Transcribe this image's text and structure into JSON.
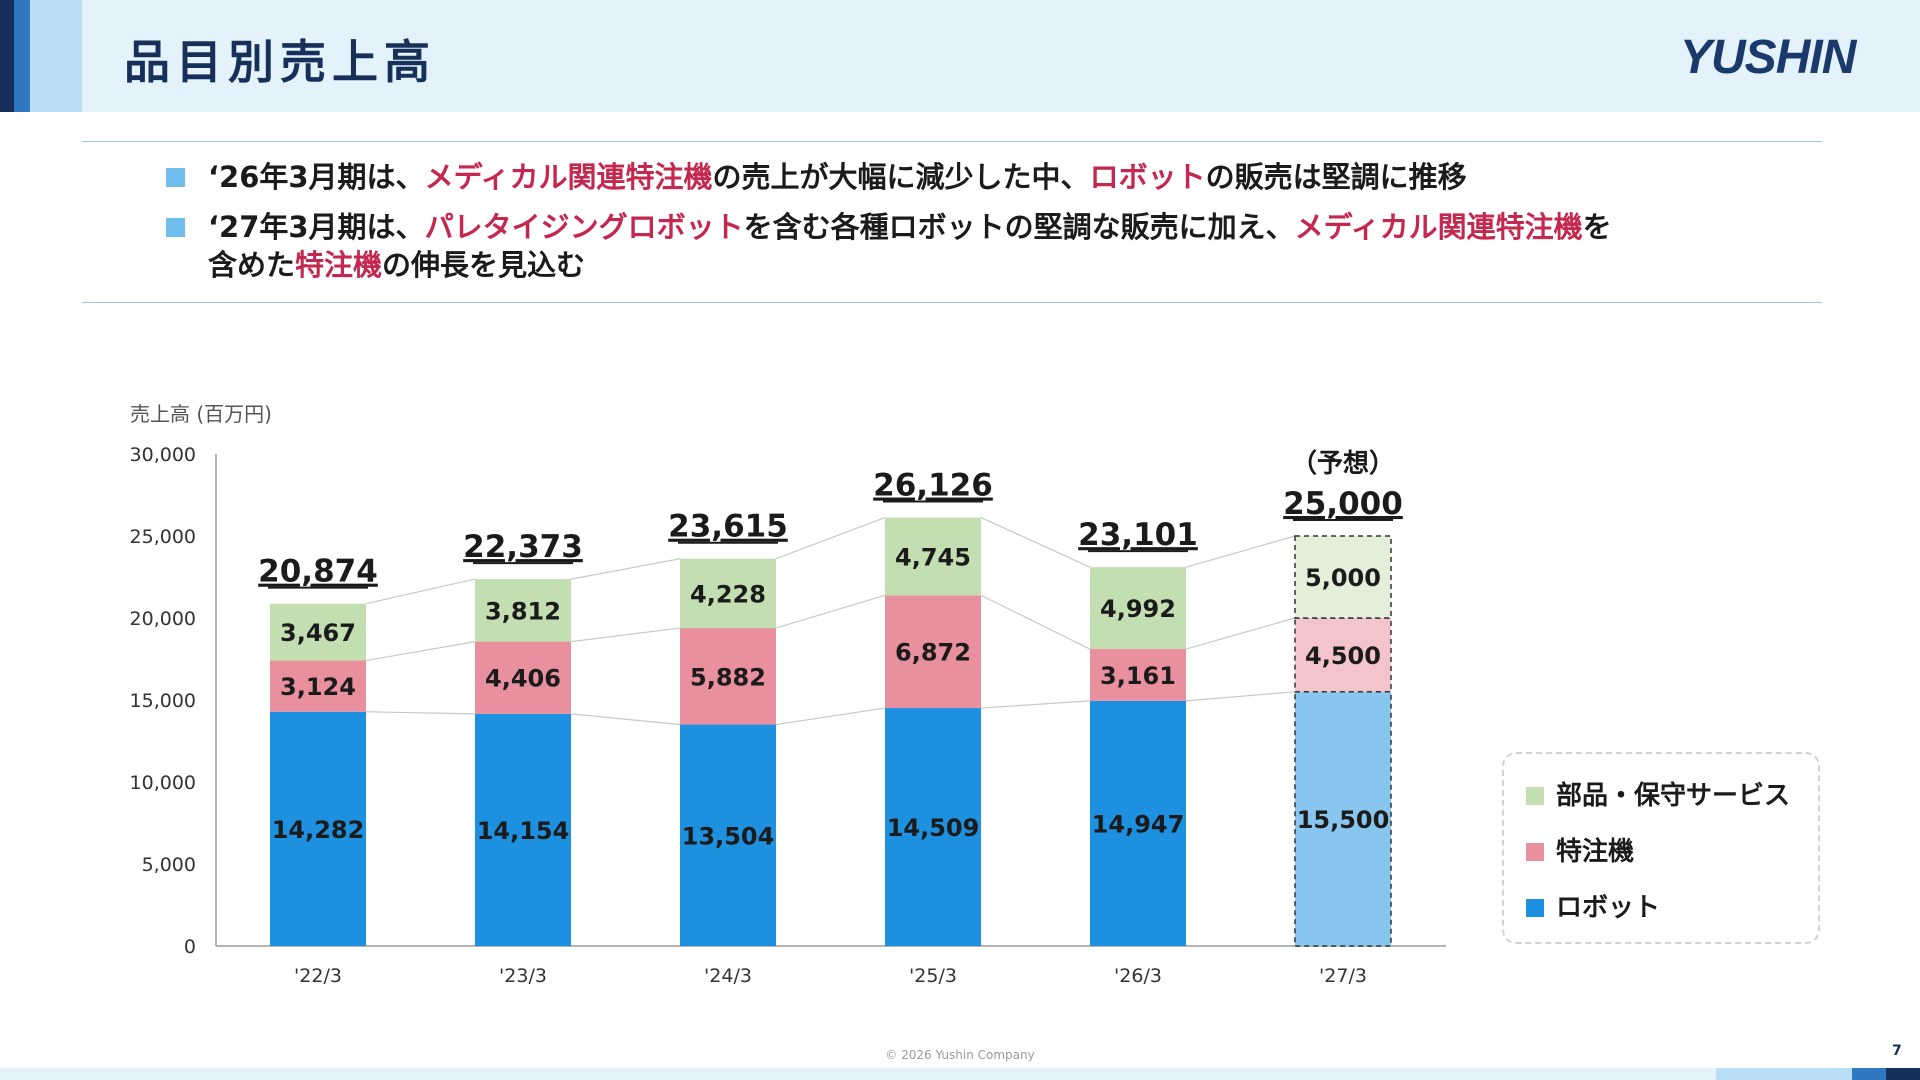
{
  "header": {
    "title": "品目別売上高",
    "logo": "YUSHIN"
  },
  "bullets": [
    [
      {
        "t": "‘26年3月期は、",
        "hl": false
      },
      {
        "t": "メディカル関連特注機",
        "hl": true
      },
      {
        "t": "の売上が大幅に減少した中、",
        "hl": false
      },
      {
        "t": "ロボット",
        "hl": true
      },
      {
        "t": "の販売は堅調に推移",
        "hl": false
      }
    ],
    [
      {
        "t": "‘27年3月期は、",
        "hl": false
      },
      {
        "t": "パレタイジングロボット",
        "hl": true
      },
      {
        "t": "を含む各種ロボットの堅調な販売に加え、",
        "hl": false
      },
      {
        "t": "メディカル関連特注機",
        "hl": true
      },
      {
        "t": "を",
        "hl": false
      }
    ],
    [
      {
        "t": "含めた",
        "hl": false
      },
      {
        "t": "特注機",
        "hl": true
      },
      {
        "t": "の伸長を見込む",
        "hl": false
      }
    ]
  ],
  "colors": {
    "robot": "#1e90e0",
    "special": "#e8909d",
    "parts": "#c3deb0",
    "robot_forecast": "#88c5ef",
    "special_forecast": "#f4c4cd",
    "parts_forecast": "#e3efd9",
    "highlight": "#c4284f",
    "bullet": "#6fbeee"
  },
  "chart_data": {
    "type": "bar",
    "stacked": true,
    "ylabel": "売上高 (百万円)",
    "ylim": [
      0,
      30000
    ],
    "yticks": [
      "0",
      "5,000",
      "10,000",
      "15,000",
      "20,000",
      "25,000",
      "30,000"
    ],
    "categories": [
      "'22/3",
      "'23/3",
      "'24/3",
      "'25/3",
      "'26/3",
      "'27/3"
    ],
    "series": [
      {
        "name": "ロボット",
        "values": [
          14282,
          14154,
          13504,
          14509,
          14947,
          15500
        ],
        "labels": [
          "14,282",
          "14,154",
          "13,504",
          "14,509",
          "14,947",
          "15,500"
        ]
      },
      {
        "name": "特注機",
        "values": [
          3124,
          4406,
          5882,
          6872,
          3161,
          4500
        ],
        "labels": [
          "3,124",
          "4,406",
          "5,882",
          "6,872",
          "3,161",
          "4,500"
        ]
      },
      {
        "name": "部品・保守サービス",
        "values": [
          3467,
          3812,
          4228,
          4745,
          4992,
          5000
        ],
        "labels": [
          "3,467",
          "3,812",
          "4,228",
          "4,745",
          "4,992",
          "5,000"
        ]
      }
    ],
    "totals": [
      20874,
      22373,
      23615,
      26126,
      23101,
      25000
    ],
    "total_labels": [
      "20,874",
      "22,373",
      "23,615",
      "26,126",
      "23,101",
      "25,000"
    ],
    "forecast_index": 5,
    "forecast_note": "（予想）",
    "legend": [
      "部品・保守サービス",
      "特注機",
      "ロボット"
    ],
    "legend_position": "right",
    "grid": false
  },
  "footer": {
    "copyright": "© 2026 Yushin Company",
    "page": "7"
  }
}
